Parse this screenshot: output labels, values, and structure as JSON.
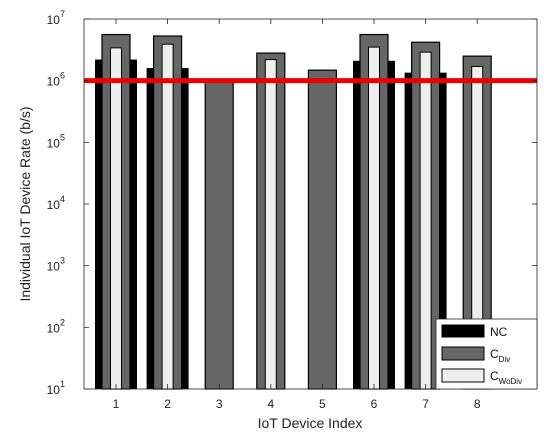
{
  "chart_data": {
    "type": "bar",
    "xlabel": "IoT Device Index",
    "ylabel": "Individual IoT Device Rate (b/s)",
    "yscale": "log",
    "ylim": [
      10,
      10000000
    ],
    "yticks": [
      {
        "value": 10,
        "base": "10",
        "exp": "1"
      },
      {
        "value": 100,
        "base": "10",
        "exp": "2"
      },
      {
        "value": 1000,
        "base": "10",
        "exp": "3"
      },
      {
        "value": 10000,
        "base": "10",
        "exp": "4"
      },
      {
        "value": 100000,
        "base": "10",
        "exp": "5"
      },
      {
        "value": 1000000,
        "base": "10",
        "exp": "6"
      },
      {
        "value": 10000000,
        "base": "10",
        "exp": "7"
      }
    ],
    "categories": [
      "1",
      "2",
      "3",
      "4",
      "5",
      "6",
      "7",
      "8"
    ],
    "series": [
      {
        "name": "NC",
        "legend_main": "NC",
        "legend_sub": "",
        "color": "#000000",
        "values": [
          2200000,
          1600000,
          null,
          null,
          null,
          2100000,
          1350000,
          null
        ]
      },
      {
        "name": "C_Div",
        "legend_main": "C",
        "legend_sub": "Div",
        "color": "#666666",
        "values": [
          5600000,
          5300000,
          950000,
          2800000,
          1480000,
          5600000,
          4200000,
          2500000
        ]
      },
      {
        "name": "C_WoDiv",
        "legend_main": "C",
        "legend_sub": "WoDiv",
        "color": "#eeeeee",
        "values": [
          3400000,
          3900000,
          null,
          2200000,
          null,
          3500000,
          2900000,
          1700000
        ]
      }
    ],
    "reference_line": {
      "value": 1000000,
      "color": "#ee0000"
    },
    "legend_position": "bottom-right",
    "grid": false
  }
}
